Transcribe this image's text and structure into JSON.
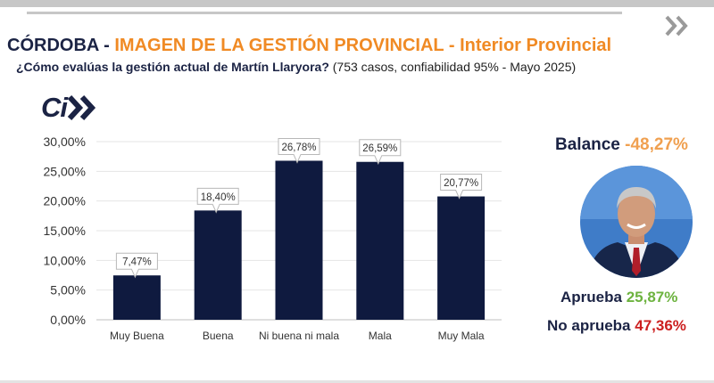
{
  "header": {
    "title_part1": "CÓRDOBA - ",
    "title_part2": "IMAGEN DE LA GESTIÓN PROVINCIAL - Interior Provincial",
    "question": "¿Cómo evalúas la gestión actual de Martín Llaryora?",
    "question_meta": " (753 casos, confiabilidad 95% - Mayo 2025)",
    "logo_text": "Ci"
  },
  "colors": {
    "navy": "#1b2344",
    "orange": "#f08a24",
    "green": "#6db33f",
    "red": "#cc2020",
    "bar": "#0f1a3f"
  },
  "summary": {
    "balance_label": "Balance ",
    "balance_value": "-48,27%",
    "aprueba_label": "Aprueba ",
    "aprueba_value": "25,87%",
    "noaprueba_label": "No aprueba ",
    "noaprueba_value": "47,36%"
  },
  "chart_data": {
    "type": "bar",
    "categories": [
      "Muy Buena",
      "Buena",
      "Ni buena ni mala",
      "Mala",
      "Muy Mala"
    ],
    "values": [
      7.47,
      18.4,
      26.78,
      26.59,
      20.77
    ],
    "data_labels": [
      "7,47%",
      "18,40%",
      "26,78%",
      "26,59%",
      "20,77%"
    ],
    "ylim": [
      0,
      30
    ],
    "yticks": [
      0,
      5,
      10,
      15,
      20,
      25,
      30
    ],
    "ytick_labels": [
      "0,00%",
      "5,00%",
      "10,00%",
      "15,00%",
      "20,00%",
      "25,00%",
      "30,00%"
    ],
    "grid": true,
    "legend": "none"
  }
}
